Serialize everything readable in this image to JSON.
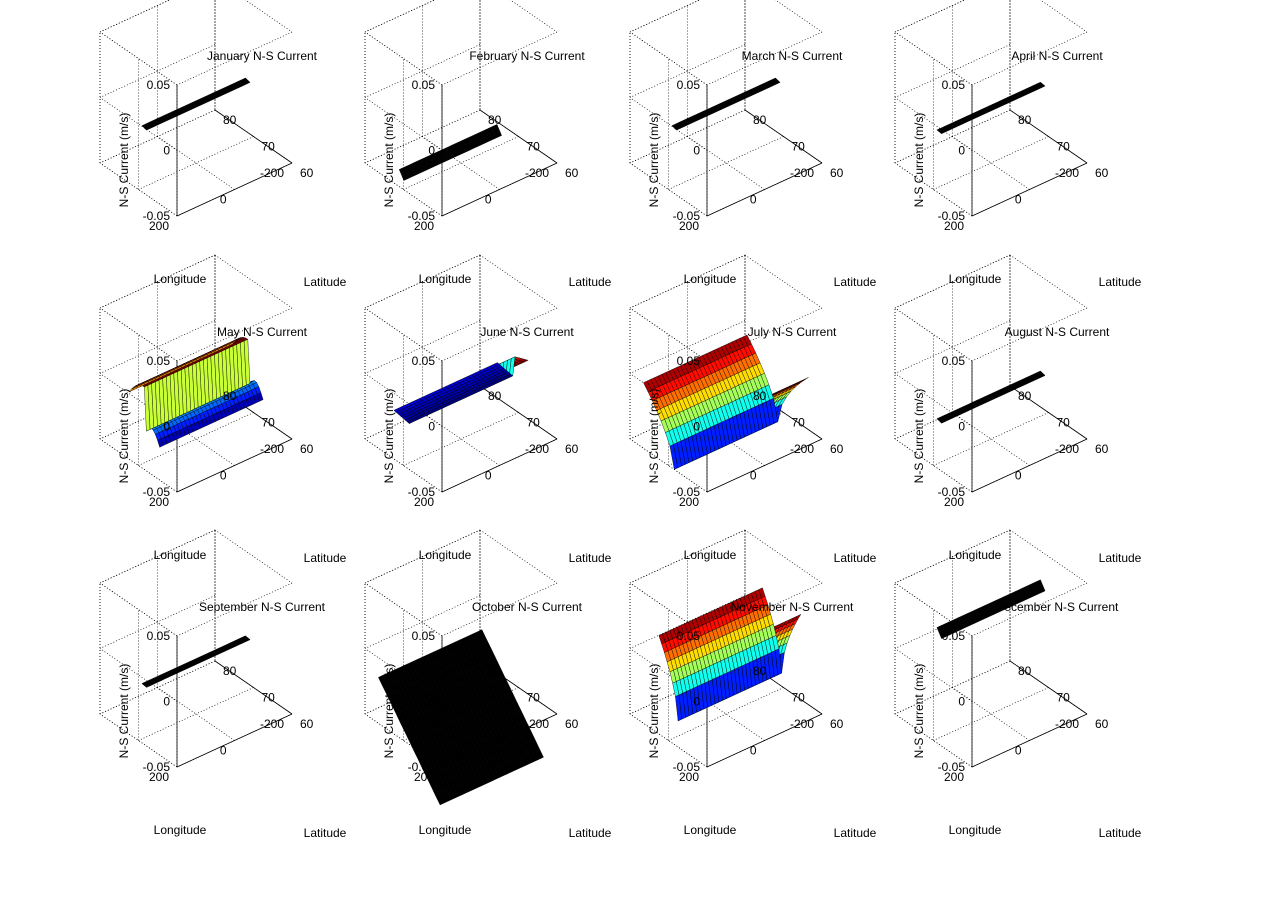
{
  "figure": {
    "background": "#ffffff",
    "axis_color": "#000000",
    "grid_style": "dotted"
  },
  "chart_data": [
    {
      "type": "surface3d",
      "title": "January N-S Current",
      "xlabel": "Longitude",
      "ylabel": "Latitude",
      "zlabel": "N-S Current (m/s)",
      "xlim": [
        -200,
        200
      ],
      "ylim": [
        60,
        80
      ],
      "zlim": [
        -0.05,
        0.05
      ],
      "xticks": [
        "-200",
        "0",
        "200"
      ],
      "yticks": [
        "60",
        "70",
        "80"
      ],
      "zticks": [
        "-0.05",
        "0",
        "0.05"
      ],
      "grid": true,
      "surface": {
        "shape": "flat",
        "lon_range": [
          -180,
          180
        ],
        "lat": 70,
        "z_level": -0.005,
        "z_amplitude": 0.001,
        "colored": false
      }
    },
    {
      "type": "surface3d",
      "title": "February N-S Current",
      "xlabel": "Longitude",
      "ylabel": "Latitude",
      "zlabel": "N-S Current (m/s)",
      "xlim": [
        -200,
        200
      ],
      "ylim": [
        60,
        80
      ],
      "zlim": [
        -0.05,
        0.05
      ],
      "xticks": [
        "-200",
        "0",
        "200"
      ],
      "yticks": [
        "60",
        "70",
        "80"
      ],
      "zticks": [
        "-0.05",
        "0",
        "0.05"
      ],
      "grid": true,
      "surface": {
        "shape": "flat",
        "lon_range": [
          -160,
          180
        ],
        "lat": 72,
        "z_level": -0.045,
        "z_amplitude": 0.006,
        "colored": false
      }
    },
    {
      "type": "surface3d",
      "title": "March N-S Current",
      "xlabel": "Longitude",
      "ylabel": "Latitude",
      "zlabel": "N-S Current (m/s)",
      "xlim": [
        -200,
        200
      ],
      "ylim": [
        60,
        80
      ],
      "zlim": [
        -0.05,
        0.05
      ],
      "xticks": [
        "-200",
        "0",
        "200"
      ],
      "yticks": [
        "60",
        "70",
        "80"
      ],
      "zticks": [
        "-0.05",
        "0",
        "0.05"
      ],
      "grid": true,
      "surface": {
        "shape": "flat",
        "lon_range": [
          -180,
          180
        ],
        "lat": 70,
        "z_level": -0.005,
        "z_amplitude": 0.001,
        "colored": false
      }
    },
    {
      "type": "surface3d",
      "title": "April N-S Current",
      "xlabel": "Longitude",
      "ylabel": "Latitude",
      "zlabel": "N-S Current (m/s)",
      "xlim": [
        -200,
        200
      ],
      "ylim": [
        60,
        80
      ],
      "zlim": [
        -0.05,
        0.05
      ],
      "xticks": [
        "-200",
        "0",
        "200"
      ],
      "yticks": [
        "60",
        "70",
        "80"
      ],
      "zticks": [
        "-0.05",
        "0",
        "0.05"
      ],
      "grid": true,
      "surface": {
        "shape": "flat",
        "lon_range": [
          -180,
          180
        ],
        "lat": 70,
        "z_level": -0.008,
        "z_amplitude": 0.0005,
        "colored": false
      }
    },
    {
      "type": "surface3d",
      "title": "May N-S Current",
      "xlabel": "Longitude",
      "ylabel": "Latitude",
      "zlabel": "N-S Current (m/s)",
      "xlim": [
        -200,
        200
      ],
      "ylim": [
        60,
        80
      ],
      "zlim": [
        -0.05,
        0.05
      ],
      "xticks": [
        "-200",
        "0",
        "200"
      ],
      "yticks": [
        "60",
        "70",
        "80"
      ],
      "zticks": [
        "-0.05",
        "0",
        "0.05"
      ],
      "grid": true,
      "surface": {
        "shape": "step",
        "lon_range": [
          -180,
          180
        ],
        "lat_range": [
          66,
          74
        ],
        "z_low": -0.03,
        "z_high": 0.008,
        "colored": true
      }
    },
    {
      "type": "surface3d",
      "title": "June N-S Current",
      "xlabel": "Longitude",
      "ylabel": "Latitude",
      "zlabel": "N-S Current (m/s)",
      "xlim": [
        -200,
        200
      ],
      "ylim": [
        60,
        80
      ],
      "zlim": [
        -0.05,
        0.05
      ],
      "xticks": [
        "-200",
        "0",
        "200"
      ],
      "yticks": [
        "60",
        "70",
        "80"
      ],
      "zticks": [
        "-0.05",
        "0",
        "0.05"
      ],
      "grid": true,
      "surface": {
        "shape": "step_down",
        "lon_range": [
          -180,
          180
        ],
        "lat_range": [
          66,
          74
        ],
        "z_low": -0.02,
        "z_high": 0.0,
        "colored": true
      }
    },
    {
      "type": "surface3d",
      "title": "July N-S Current",
      "xlabel": "Longitude",
      "ylabel": "Latitude",
      "zlabel": "N-S Current (m/s)",
      "xlim": [
        -200,
        200
      ],
      "ylim": [
        60,
        80
      ],
      "zlim": [
        -0.05,
        0.05
      ],
      "xticks": [
        "-200",
        "0",
        "200"
      ],
      "yticks": [
        "60",
        "70",
        "80"
      ],
      "zticks": [
        "-0.05",
        "0",
        "0.05"
      ],
      "grid": true,
      "surface": {
        "shape": "valley",
        "lon_range": [
          -180,
          180
        ],
        "lat_range": [
          62,
          78
        ],
        "z_low": -0.055,
        "z_high": -0.005,
        "colored": true
      }
    },
    {
      "type": "surface3d",
      "title": "August N-S Current",
      "xlabel": "Longitude",
      "ylabel": "Latitude",
      "zlabel": "N-S Current (m/s)",
      "xlim": [
        -200,
        200
      ],
      "ylim": [
        60,
        80
      ],
      "zlim": [
        -0.05,
        0.05
      ],
      "xticks": [
        "-200",
        "0",
        "200"
      ],
      "yticks": [
        "60",
        "70",
        "80"
      ],
      "zticks": [
        "-0.05",
        "0",
        "0.05"
      ],
      "grid": true,
      "surface": {
        "shape": "flat",
        "lon_range": [
          -180,
          180
        ],
        "lat": 70,
        "z_level": -0.018,
        "z_amplitude": 0.001,
        "colored": false
      }
    },
    {
      "type": "surface3d",
      "title": "September N-S Current",
      "xlabel": "Longitude",
      "ylabel": "Latitude",
      "zlabel": "N-S Current (m/s)",
      "xlim": [
        -200,
        200
      ],
      "ylim": [
        60,
        80
      ],
      "zlim": [
        -0.05,
        0.05
      ],
      "xticks": [
        "-200",
        "0",
        "200"
      ],
      "yticks": [
        "60",
        "70",
        "80"
      ],
      "zticks": [
        "-0.05",
        "0",
        "0.05"
      ],
      "grid": true,
      "surface": {
        "shape": "flat",
        "lon_range": [
          -180,
          180
        ],
        "lat": 70,
        "z_level": -0.01,
        "z_amplitude": 0.0005,
        "colored": false
      }
    },
    {
      "type": "surface3d",
      "title": "October N-S Current",
      "xlabel": "Longitude",
      "ylabel": "Latitude",
      "zlabel": "N-S Current (m/s)",
      "xlim": [
        -200,
        200
      ],
      "ylim": [
        60,
        80
      ],
      "zlim": [
        -0.05,
        0.05
      ],
      "xticks": [
        "-200",
        "0",
        "200"
      ],
      "yticks": [
        "60",
        "70",
        "80"
      ],
      "zticks": [
        "-0.05",
        "0",
        "0.05"
      ],
      "grid": true,
      "surface": {
        "shape": "plane",
        "lon_range": [
          -180,
          180
        ],
        "lat_range": [
          62,
          78
        ],
        "z_low": -0.085,
        "z_high": -0.02,
        "colored": false
      }
    },
    {
      "type": "surface3d",
      "title": "November N-S Current",
      "xlabel": "Longitude",
      "ylabel": "Latitude",
      "zlabel": "N-S Current (m/s)",
      "xlim": [
        -200,
        200
      ],
      "ylim": [
        60,
        80
      ],
      "zlim": [
        -0.05,
        0.05
      ],
      "xticks": [
        "-200",
        "0",
        "200"
      ],
      "yticks": [
        "60",
        "70",
        "80"
      ],
      "zticks": [
        "-0.05",
        "0",
        "0.05"
      ],
      "grid": true,
      "surface": {
        "shape": "valley",
        "lon_range": [
          -180,
          180
        ],
        "lat_range": [
          64,
          74
        ],
        "z_low": -0.035,
        "z_high": 0.02,
        "colored": true
      }
    },
    {
      "type": "surface3d",
      "title": "December N-S Current",
      "xlabel": "Longitude",
      "ylabel": "Latitude",
      "zlabel": "N-S Current (m/s)",
      "xlim": [
        -200,
        200
      ],
      "ylim": [
        60,
        80
      ],
      "zlim": [
        -0.05,
        0.05
      ],
      "xticks": [
        "-200",
        "0",
        "200"
      ],
      "yticks": [
        "60",
        "70",
        "80"
      ],
      "zticks": [
        "-0.05",
        "0",
        "0.05"
      ],
      "grid": true,
      "surface": {
        "shape": "flat",
        "lon_range": [
          -180,
          180
        ],
        "lat": 70,
        "z_level": 0.03,
        "z_amplitude": 0.006,
        "colored": false
      }
    }
  ]
}
